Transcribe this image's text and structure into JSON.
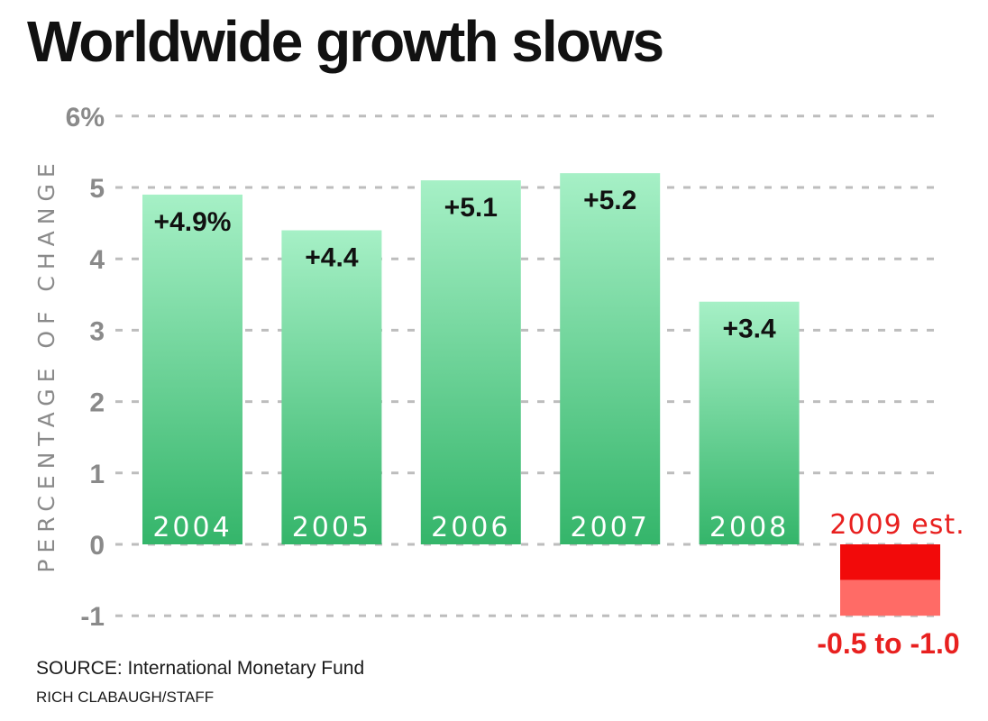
{
  "chart_data": {
    "type": "bar",
    "title": "Worldwide growth slows",
    "ylabel": "PERCENTAGE OF CHANGE",
    "ylim": [
      -1,
      6
    ],
    "yticks": [
      {
        "value": 6,
        "label": "6%"
      },
      {
        "value": 5,
        "label": "5"
      },
      {
        "value": 4,
        "label": "4"
      },
      {
        "value": 3,
        "label": "3"
      },
      {
        "value": 2,
        "label": "2"
      },
      {
        "value": 1,
        "label": "1"
      },
      {
        "value": 0,
        "label": "0"
      },
      {
        "value": -1,
        "label": "-1"
      }
    ],
    "categories": [
      "2004",
      "2005",
      "2006",
      "2007",
      "2008"
    ],
    "values": [
      4.9,
      4.4,
      5.1,
      5.2,
      3.4
    ],
    "value_labels": [
      "+4.9%",
      "+4.4",
      "+5.1",
      "+5.2",
      "+3.4"
    ],
    "estimate": {
      "category": "2009 est.",
      "range": [
        -0.5,
        -1.0
      ],
      "label": "-0.5 to -1.0"
    },
    "grid": true,
    "colors": {
      "bar_top": "#a6f0c6",
      "bar_bottom": "#34b56a",
      "estimate_dark": "#f20a0a",
      "estimate_light": "#ff6b66",
      "grid": "#bdbdbd",
      "axis_text": "#8a8a8a"
    }
  },
  "source": "SOURCE: International Monetary Fund",
  "credit": "RICH CLABAUGH/STAFF"
}
